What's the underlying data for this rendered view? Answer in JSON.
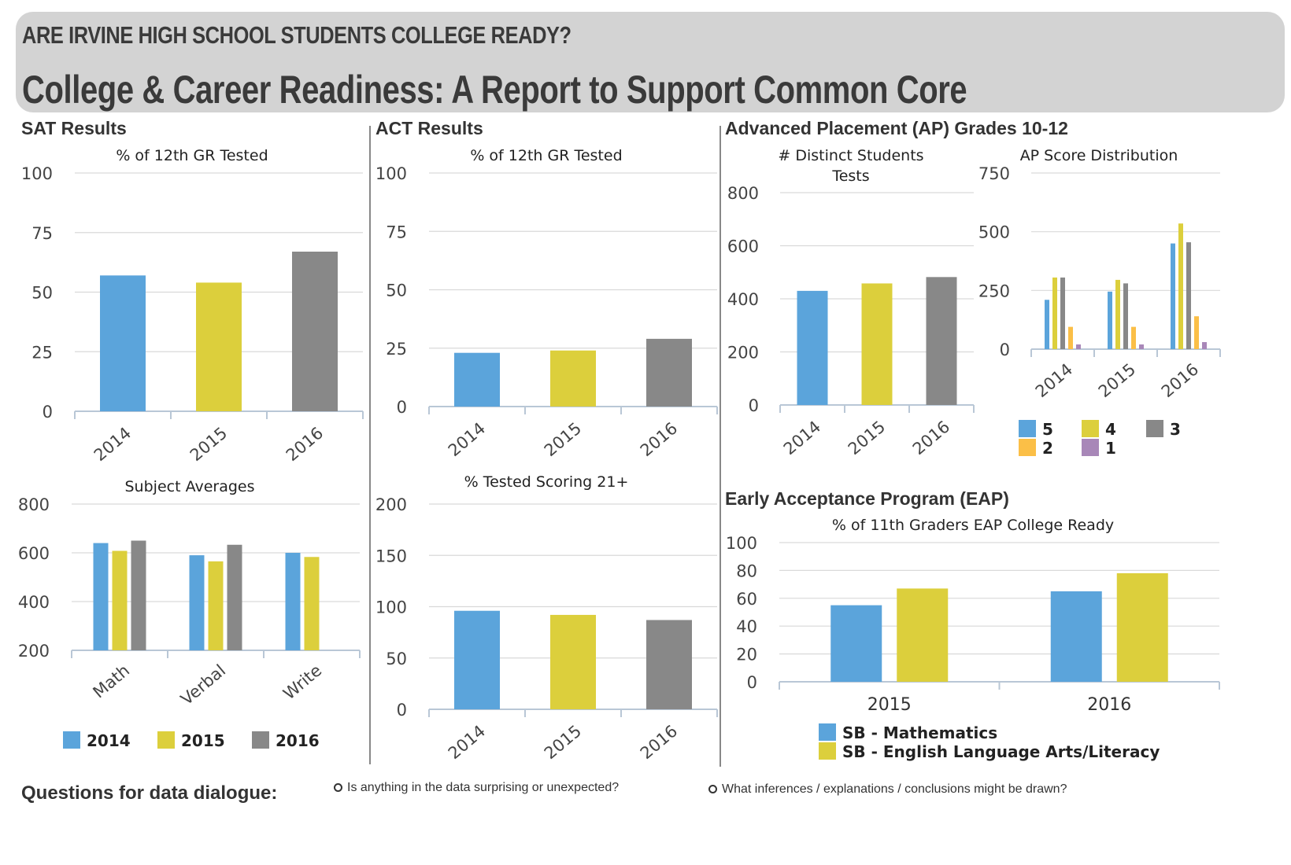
{
  "banner": {
    "supertitle": "ARE IRVINE HIGH SCHOOL STUDENTS COLLEGE READY?",
    "title": "College & Career Readiness: A Report to Support Common Core"
  },
  "sections": {
    "sat": "SAT Results",
    "act": "ACT Results",
    "ap": "Advanced Placement (AP) Grades 10-12",
    "eap": "Early Acceptance Program (EAP)"
  },
  "questions": {
    "title": "Questions for data dialogue:",
    "items": [
      "Is anything in the data surprising or unexpected?",
      "What inferences / explanations / conclusions might be drawn?"
    ]
  },
  "colors": {
    "blue": "#5ba4db",
    "yellow": "#dccf3c",
    "gray": "#888888",
    "orange": "#fbbf47",
    "purple": "#a887b8"
  },
  "chart_data": [
    {
      "id": "sat_tested",
      "type": "bar",
      "title": "% of 12th GR Tested",
      "categories": [
        "2014",
        "2015",
        "2016"
      ],
      "values": [
        57,
        54,
        67
      ],
      "ylim": [
        0,
        100
      ],
      "yticks": [
        0,
        25,
        50,
        75,
        100
      ],
      "colors": [
        "#5ba4db",
        "#dccf3c",
        "#888888"
      ]
    },
    {
      "id": "sat_subject",
      "type": "bar",
      "title": "Subject Averages",
      "categories": [
        "Math",
        "Verbal",
        "Write"
      ],
      "ylim": [
        200,
        800
      ],
      "yticks": [
        200,
        400,
        600,
        800
      ],
      "series": [
        {
          "name": "2014",
          "values": [
            640,
            590,
            600
          ],
          "color": "#5ba4db"
        },
        {
          "name": "2015",
          "values": [
            608,
            565,
            583
          ],
          "color": "#dccf3c"
        },
        {
          "name": "2016",
          "values": [
            650,
            633,
            null
          ],
          "color": "#888888"
        }
      ]
    },
    {
      "id": "act_tested",
      "type": "bar",
      "title": "% of 12th GR Tested",
      "categories": [
        "2014",
        "2015",
        "2016"
      ],
      "values": [
        23,
        24,
        29
      ],
      "ylim": [
        0,
        100
      ],
      "yticks": [
        0,
        25,
        50,
        75,
        100
      ],
      "colors": [
        "#5ba4db",
        "#dccf3c",
        "#888888"
      ]
    },
    {
      "id": "act_21",
      "type": "bar",
      "title": "% Tested Scoring 21+",
      "categories": [
        "2014",
        "2015",
        "2016"
      ],
      "values": [
        96,
        92,
        87
      ],
      "ylim": [
        0,
        200
      ],
      "yticks": [
        0,
        50,
        100,
        150,
        200
      ],
      "colors": [
        "#5ba4db",
        "#dccf3c",
        "#888888"
      ]
    },
    {
      "id": "ap_students",
      "type": "bar",
      "title": "# Distinct Students Tests",
      "categories": [
        "2014",
        "2015",
        "2016"
      ],
      "values": [
        430,
        458,
        482
      ],
      "ylim": [
        0,
        800
      ],
      "yticks": [
        0,
        200,
        400,
        600,
        800
      ],
      "colors": [
        "#5ba4db",
        "#dccf3c",
        "#888888"
      ]
    },
    {
      "id": "ap_scores",
      "type": "bar",
      "title": "AP Score Distribution",
      "categories": [
        "2014",
        "2015",
        "2016"
      ],
      "ylim": [
        0,
        750
      ],
      "yticks": [
        0,
        250,
        500,
        750
      ],
      "series": [
        {
          "name": "5",
          "values": [
            210,
            245,
            450
          ],
          "color": "#5ba4db"
        },
        {
          "name": "4",
          "values": [
            305,
            295,
            535
          ],
          "color": "#dccf3c"
        },
        {
          "name": "3",
          "values": [
            305,
            280,
            455
          ],
          "color": "#888888"
        },
        {
          "name": "2",
          "values": [
            95,
            95,
            140
          ],
          "color": "#fbbf47"
        },
        {
          "name": "1",
          "values": [
            20,
            20,
            30
          ],
          "color": "#a887b8"
        }
      ]
    },
    {
      "id": "eap",
      "type": "bar",
      "title": "% of 11th Graders EAP College Ready",
      "categories": [
        "2015",
        "2016"
      ],
      "ylim": [
        0,
        100
      ],
      "yticks": [
        0,
        20,
        40,
        60,
        80,
        100
      ],
      "series": [
        {
          "name": "SB - Mathematics",
          "values": [
            55,
            65
          ],
          "color": "#5ba4db"
        },
        {
          "name": "SB - English Language Arts/Literacy",
          "values": [
            67,
            78
          ],
          "color": "#dccf3c"
        }
      ]
    }
  ]
}
